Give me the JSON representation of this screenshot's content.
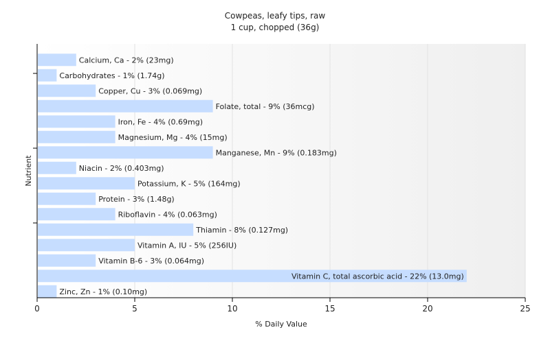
{
  "chart_data": {
    "type": "bar",
    "orientation": "horizontal",
    "title": "Cowpeas, leafy tips, raw",
    "subtitle": "1 cup, chopped (36g)",
    "xlabel": "% Daily Value",
    "ylabel": "Nutrient",
    "xlim": [
      0,
      25
    ],
    "xticks": [
      0,
      5,
      10,
      15,
      20,
      25
    ],
    "grid": true,
    "bar_color": "#c6ddff",
    "categories": [
      "Calcium, Ca",
      "Carbohydrates",
      "Copper, Cu",
      "Folate, total",
      "Iron, Fe",
      "Magnesium, Mg",
      "Manganese, Mn",
      "Niacin",
      "Potassium, K",
      "Protein",
      "Riboflavin",
      "Thiamin",
      "Vitamin A, IU",
      "Vitamin B-6",
      "Vitamin C, total ascorbic acid",
      "Zinc, Zn"
    ],
    "values": [
      2,
      1,
      3,
      9,
      4,
      4,
      9,
      2,
      5,
      3,
      4,
      8,
      5,
      3,
      22,
      1
    ],
    "data_labels": [
      "Calcium, Ca - 2% (23mg)",
      "Carbohydrates - 1% (1.74g)",
      "Copper, Cu - 3% (0.069mg)",
      "Folate, total - 9% (36mcg)",
      "Iron, Fe - 4% (0.69mg)",
      "Magnesium, Mg - 4% (15mg)",
      "Manganese, Mn - 9% (0.183mg)",
      "Niacin - 2% (0.403mg)",
      "Potassium, K - 5% (164mg)",
      "Protein - 3% (1.48g)",
      "Riboflavin - 4% (0.063mg)",
      "Thiamin - 8% (0.127mg)",
      "Vitamin A, IU - 5% (256IU)",
      "Vitamin B-6 - 3% (0.064mg)",
      "Vitamin C, total ascorbic acid - 22% (13.0mg)",
      "Zinc, Zn - 1% (0.10mg)"
    ]
  }
}
